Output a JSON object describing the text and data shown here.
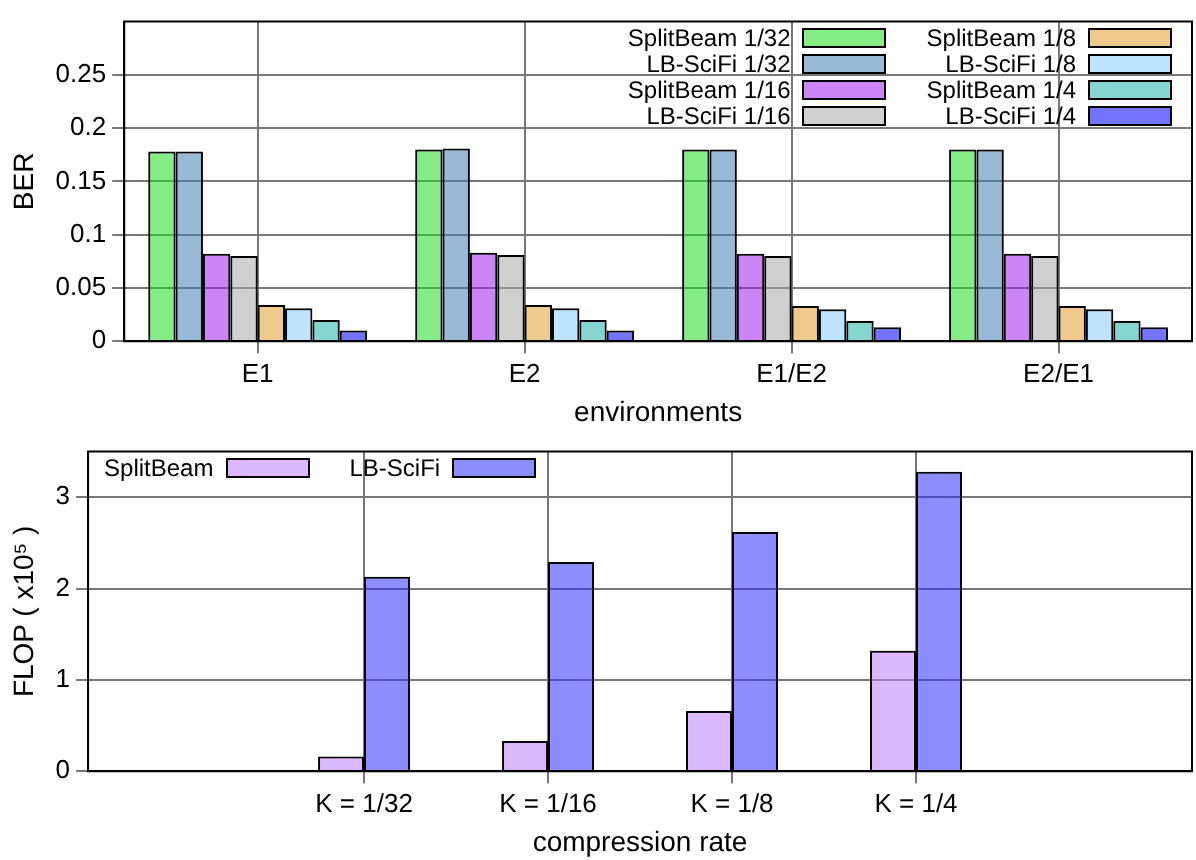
{
  "chart_data": [
    {
      "type": "bar",
      "xlabel": "environments",
      "ylabel": "BER",
      "categories": [
        "E1",
        "E2",
        "E1/E2",
        "E2/E1"
      ],
      "ylim": [
        0,
        0.3
      ],
      "yticks": [
        0,
        0.05,
        0.1,
        0.15,
        0.2,
        0.25
      ],
      "grid": true,
      "legend": "top right",
      "series": [
        {
          "name": "SplitBeam 1/32",
          "color": "#22dd22",
          "values": [
            0.178,
            0.18,
            0.18,
            0.18
          ]
        },
        {
          "name": "LB-SciFi 1/32",
          "color": "#4682b4",
          "values": [
            0.178,
            0.181,
            0.18,
            0.18
          ]
        },
        {
          "name": "SplitBeam 1/16",
          "color": "#a020f0",
          "values": [
            0.082,
            0.083,
            0.082,
            0.082
          ]
        },
        {
          "name": "LB-SciFi 1/16",
          "color": "#aaaaaa",
          "values": [
            0.08,
            0.081,
            0.08,
            0.08
          ]
        },
        {
          "name": "SplitBeam 1/8",
          "color": "#e0a030",
          "values": [
            0.034,
            0.034,
            0.033,
            0.033
          ]
        },
        {
          "name": "LB-SciFi 1/8",
          "color": "#87cefa",
          "values": [
            0.031,
            0.031,
            0.03,
            0.03
          ]
        },
        {
          "name": "SplitBeam 1/4",
          "color": "#20b2aa",
          "values": [
            0.02,
            0.02,
            0.019,
            0.019
          ]
        },
        {
          "name": "LB-SciFi 1/4",
          "color": "#0000ff",
          "values": [
            0.01,
            0.01,
            0.013,
            0.013
          ]
        }
      ]
    },
    {
      "type": "bar",
      "xlabel": "compression rate",
      "ylabel": "FLOP ( x10⁵ )",
      "categories": [
        "K = 1/32",
        "K = 1/16",
        "K = 1/8",
        "K = 1/4"
      ],
      "ylim": [
        0,
        3.5
      ],
      "yticks": [
        0,
        1,
        2,
        3
      ],
      "grid": true,
      "legend": "top left",
      "series": [
        {
          "name": "SplitBeam",
          "color": "#c080ff",
          "values": [
            0.16,
            0.33,
            0.66,
            1.32
          ]
        },
        {
          "name": "LB-SciFi",
          "color": "#3030ff",
          "values": [
            2.13,
            2.29,
            2.62,
            3.28
          ]
        }
      ]
    }
  ]
}
